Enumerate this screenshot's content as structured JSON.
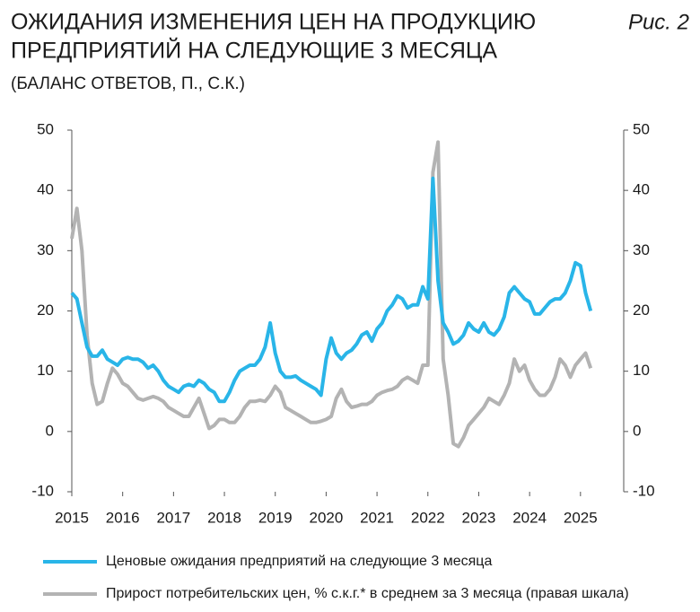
{
  "chart_data": {
    "type": "line",
    "title": [
      "ОЖИДАНИЯ ИЗМЕНЕНИЯ ЦЕН НА ПРОДУКЦИЮ",
      "ПРЕДПРИЯТИЙ НА СЛЕДУЮЩИЕ 3 МЕСЯЦА"
    ],
    "figure_label": "Рис. 2",
    "subtitle": "(БАЛАНС ОТВЕТОВ, П., С.К.)",
    "x": [
      2015,
      2015.1,
      2015.2,
      2015.3,
      2015.4,
      2015.5,
      2015.6,
      2015.7,
      2015.8,
      2015.9,
      2016,
      2016.1,
      2016.2,
      2016.3,
      2016.4,
      2016.5,
      2016.6,
      2016.7,
      2016.8,
      2016.9,
      2017,
      2017.1,
      2017.2,
      2017.3,
      2017.4,
      2017.5,
      2017.6,
      2017.7,
      2017.8,
      2017.9,
      2018,
      2018.1,
      2018.2,
      2018.3,
      2018.4,
      2018.5,
      2018.6,
      2018.7,
      2018.8,
      2018.9,
      2019,
      2019.1,
      2019.2,
      2019.3,
      2019.4,
      2019.5,
      2019.6,
      2019.7,
      2019.8,
      2019.9,
      2020,
      2020.1,
      2020.2,
      2020.3,
      2020.4,
      2020.5,
      2020.6,
      2020.7,
      2020.8,
      2020.9,
      2021,
      2021.1,
      2021.2,
      2021.3,
      2021.4,
      2021.5,
      2021.6,
      2021.7,
      2021.8,
      2021.9,
      2022,
      2022.1,
      2022.2,
      2022.3,
      2022.4,
      2022.5,
      2022.6,
      2022.7,
      2022.8,
      2022.9,
      2023,
      2023.1,
      2023.2,
      2023.3,
      2023.4,
      2023.5,
      2023.6,
      2023.7,
      2023.8,
      2023.9,
      2024,
      2024.1,
      2024.2,
      2024.3,
      2024.4,
      2024.5,
      2024.6,
      2024.7,
      2024.8,
      2024.9,
      2025,
      2025.1,
      2025.2
    ],
    "series": [
      {
        "name": "Ценовые ожидания предприятий на следующие 3 месяца",
        "color": "#29b5e8",
        "values": [
          23,
          22,
          18,
          14,
          12.5,
          12.5,
          13.5,
          12,
          11.5,
          11,
          12,
          12.3,
          12,
          12,
          11.5,
          10.5,
          11,
          10,
          8.5,
          7.5,
          7,
          6.5,
          7.5,
          7.8,
          7.5,
          8.5,
          8,
          7,
          6.5,
          5,
          5,
          6.5,
          8.5,
          10,
          10.5,
          11,
          11,
          12,
          14,
          18,
          13,
          10,
          9,
          9,
          9.2,
          8.5,
          8,
          7.5,
          7,
          6,
          12,
          15.5,
          13,
          12,
          13,
          13.5,
          14.5,
          16,
          16.5,
          15,
          17,
          18,
          20,
          21,
          22.5,
          22,
          20.5,
          21,
          21,
          24,
          22,
          42,
          25,
          18,
          16.5,
          14.5,
          15,
          16,
          18,
          17,
          16.5,
          18,
          16.5,
          16,
          17,
          19,
          23,
          24,
          23,
          22,
          21.5,
          19.5,
          19.5,
          20.5,
          21.5,
          22,
          22,
          23,
          25,
          28,
          27.5,
          23,
          20
        ]
      },
      {
        "name": "Прирост потребительских цен, %  с.к.г.* в среднем за 3 месяца (правая шкала)",
        "color": "#b3b3b3",
        "axis": "y2",
        "values": [
          32,
          37,
          30,
          16,
          8,
          4.5,
          5,
          8,
          10.5,
          9.5,
          8,
          7.5,
          6.5,
          5.5,
          5.2,
          5.5,
          5.8,
          5.5,
          5,
          4,
          3.5,
          3,
          2.5,
          2.5,
          4,
          5.5,
          3,
          0.5,
          1,
          2,
          2,
          1.5,
          1.5,
          2.5,
          4,
          5,
          5,
          5.2,
          5,
          6,
          7.5,
          6.5,
          4,
          3.5,
          3,
          2.5,
          2,
          1.5,
          1.5,
          1.7,
          2,
          2.5,
          5.5,
          7,
          5,
          4,
          4.2,
          4.5,
          4.5,
          5,
          6,
          6.5,
          6.8,
          7,
          7.5,
          8.5,
          9,
          8.5,
          8,
          11,
          11,
          43,
          48,
          12,
          6,
          -2,
          -2.5,
          -1,
          1,
          2,
          3,
          4,
          5.5,
          5,
          4.5,
          6,
          8,
          12,
          10,
          11,
          8.5,
          7,
          6,
          6,
          7,
          9,
          12,
          11,
          9,
          11,
          12,
          13,
          10.5
        ]
      }
    ],
    "xlim": [
      2015,
      2025.85
    ],
    "xticks": [
      2015,
      2016,
      2017,
      2018,
      2019,
      2020,
      2021,
      2022,
      2023,
      2024,
      2025
    ],
    "ylim": [
      -10,
      50
    ],
    "yticks": [
      -10,
      0,
      10,
      20,
      30,
      40,
      50
    ],
    "y2lim": [
      -10,
      50
    ],
    "y2ticks": [
      -10,
      0,
      10,
      20,
      30,
      40,
      50
    ],
    "grid": false
  }
}
